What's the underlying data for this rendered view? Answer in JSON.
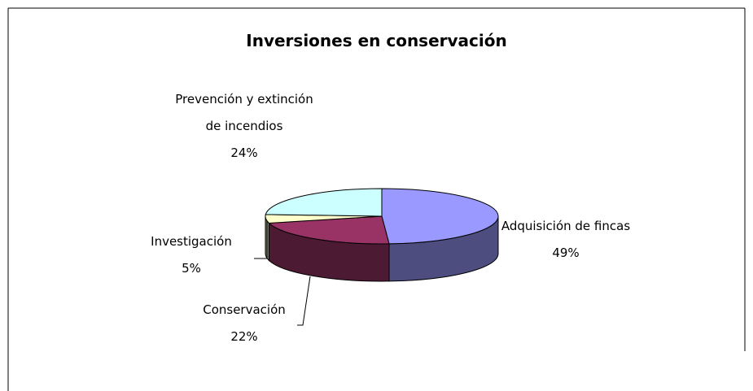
{
  "chart_data": {
    "type": "pie",
    "title": "Inversiones en conservación",
    "categories": [
      "Adquisición de fincas",
      "Conservación",
      "Investigación",
      "Prevención y extinción de incendios"
    ],
    "values": [
      49,
      22,
      5,
      24
    ],
    "value_labels": [
      "49%",
      "22%",
      "5%",
      "24%"
    ],
    "colors": [
      "#9999ff",
      "#993366",
      "#ffffcc",
      "#ccffff"
    ],
    "side_colors": [
      "#4d4d80",
      "#4d1a33",
      "#808066",
      "#668080"
    ]
  }
}
